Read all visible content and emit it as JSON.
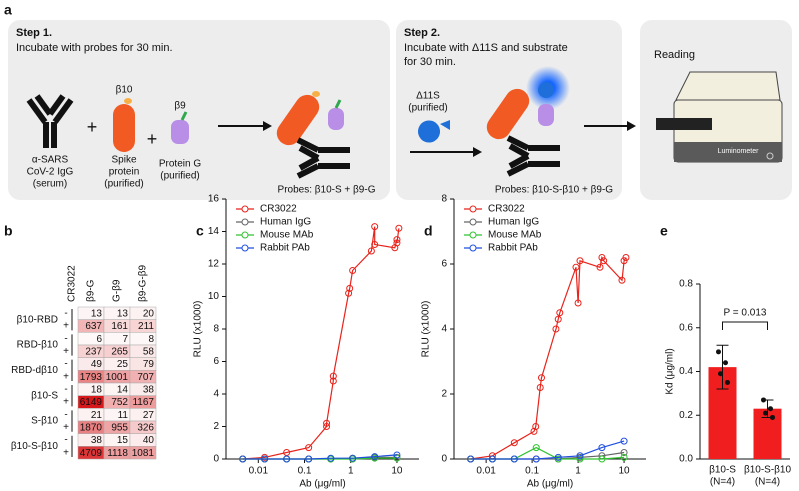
{
  "panel_labels": [
    "a",
    "b",
    "c",
    "d",
    "e"
  ],
  "schematic": {
    "step1": {
      "title": "Step 1.",
      "text": "Incubate with probes for 30 min."
    },
    "step2": {
      "title": "Step 2.",
      "lines": [
        "Incubate with Δ11S and substrate",
        "for 30 min."
      ]
    },
    "reading": "Reading",
    "igg_label": [
      "α-SARS",
      "CoV-2 IgG",
      "(serum)"
    ],
    "plus": "+",
    "spike_tag": "β10",
    "spike_label": [
      "Spike",
      "protein",
      "(purified)"
    ],
    "protg_tag": "β9",
    "protg_label": [
      "Protein G",
      "(purified)"
    ],
    "d11s_label": [
      "Δ11S",
      "(purified)"
    ],
    "luminometer": "Luminometer"
  },
  "heatmap": {
    "column_header": "CR3022",
    "columns": [
      "β9-G",
      "G-β9",
      "β9-G-β9"
    ],
    "signs": [
      "-",
      "+"
    ],
    "rows": [
      {
        "name": "β10-RBD",
        "values": [
          [
            13,
            13,
            20
          ],
          [
            637,
            161,
            211
          ]
        ]
      },
      {
        "name": "RBD-β10",
        "values": [
          [
            6,
            7,
            8
          ],
          [
            237,
            265,
            58
          ]
        ]
      },
      {
        "name": "RBD-dβ10",
        "values": [
          [
            49,
            25,
            79
          ],
          [
            1793,
            1001,
            707
          ]
        ]
      },
      {
        "name": "β10-S",
        "values": [
          [
            18,
            14,
            38
          ],
          [
            6149,
            752,
            1167
          ]
        ]
      },
      {
        "name": "S-β10",
        "values": [
          [
            21,
            11,
            27
          ],
          [
            1870,
            955,
            326
          ]
        ]
      },
      {
        "name": "β10-S-β10",
        "values": [
          [
            38,
            15,
            40
          ],
          [
            4709,
            1118,
            1081
          ]
        ]
      }
    ]
  },
  "chart_data": [
    {
      "type": "line",
      "title": "Probes: β10-S + β9-G",
      "xlabel": "Ab (μg/ml)",
      "ylabel": "RLU (x1000)",
      "log_x": true,
      "xlim": [
        0.002,
        30
      ],
      "ylim": [
        0,
        16
      ],
      "xticks": [
        0.01,
        0.1,
        1,
        10
      ],
      "yticks": [
        0,
        2,
        4,
        6,
        8,
        10,
        12,
        14,
        16
      ],
      "legend": "upper left",
      "series": [
        {
          "name": "CR3022",
          "color": "#e8231b",
          "x": [
            0.0046,
            0.0137,
            0.041,
            0.123,
            0.3,
            0.3,
            0.42,
            0.42,
            0.9,
            0.95,
            1.1,
            2.8,
            3.3,
            3.3,
            9,
            10,
            10,
            11
          ],
          "values": [
            0,
            0.1,
            0.4,
            0.7,
            2.0,
            2.2,
            4.8,
            5.1,
            10.2,
            10.5,
            11.6,
            12.8,
            14.3,
            13.2,
            13.0,
            13.5,
            13.3,
            14.2
          ]
        },
        {
          "name": "Human IgG",
          "color": "#666666",
          "x": [
            0.0046,
            0.0137,
            0.041,
            0.123,
            0.37,
            1.1,
            3.3,
            10
          ],
          "values": [
            0,
            0,
            0,
            0,
            0,
            0.05,
            0.1,
            0.1
          ]
        },
        {
          "name": "Mouse MAb",
          "color": "#2fc22f",
          "x": [
            0.0046,
            0.0137,
            0.041,
            0.123,
            0.37,
            1.1,
            3.3,
            10
          ],
          "values": [
            0,
            0,
            0,
            0,
            0,
            0,
            0.05,
            0.05
          ]
        },
        {
          "name": "Rabbit PAb",
          "color": "#1f4fe0",
          "x": [
            0.0046,
            0.0137,
            0.041,
            0.123,
            0.37,
            1.1,
            3.3,
            10
          ],
          "values": [
            0,
            0,
            0,
            0,
            0.05,
            0.05,
            0.15,
            0.25
          ]
        }
      ]
    },
    {
      "type": "line",
      "title": "Probes: β10-S-β10 + β9-G",
      "xlabel": "Ab (μg/ml)",
      "ylabel": "RLU (x1000)",
      "log_x": true,
      "xlim": [
        0.002,
        30
      ],
      "ylim": [
        0,
        8
      ],
      "xticks": [
        0.01,
        0.1,
        1,
        10
      ],
      "yticks": [
        0,
        2,
        4,
        6,
        8
      ],
      "legend": "upper left",
      "series": [
        {
          "name": "CR3022",
          "color": "#e8231b",
          "x": [
            0.0046,
            0.0137,
            0.041,
            0.11,
            0.12,
            0.15,
            0.16,
            0.33,
            0.37,
            0.4,
            0.9,
            1.0,
            1.1,
            3.0,
            3.3,
            3.6,
            9,
            10,
            11
          ],
          "values": [
            0,
            0.1,
            0.5,
            0.85,
            1.0,
            2.2,
            2.5,
            4.0,
            4.3,
            4.5,
            5.9,
            4.8,
            6.1,
            5.9,
            6.2,
            6.1,
            5.5,
            6.1,
            6.2
          ]
        },
        {
          "name": "Human IgG",
          "color": "#666666",
          "x": [
            0.0046,
            0.0137,
            0.041,
            0.123,
            0.37,
            1.1,
            3.3,
            10
          ],
          "values": [
            0,
            0,
            0,
            0,
            0,
            0.05,
            0.1,
            0.2
          ]
        },
        {
          "name": "Mouse MAb",
          "color": "#2fc22f",
          "x": [
            0.0046,
            0.0137,
            0.041,
            0.123,
            0.37,
            1.1,
            3.3,
            10
          ],
          "values": [
            0,
            0,
            0,
            0.35,
            0,
            0,
            0,
            0.05
          ]
        },
        {
          "name": "Rabbit PAb",
          "color": "#1f4fe0",
          "x": [
            0.0046,
            0.0137,
            0.041,
            0.123,
            0.37,
            1.1,
            3.3,
            10
          ],
          "values": [
            0,
            0,
            0,
            0,
            0.05,
            0.1,
            0.35,
            0.55
          ]
        }
      ]
    },
    {
      "type": "bar",
      "ylabel": "Kd (μg/ml)",
      "categories": [
        "β10-S",
        "β10-S-β10"
      ],
      "sublabels": [
        "(N=4)",
        "(N=4)"
      ],
      "values": [
        0.42,
        0.23
      ],
      "errors": [
        0.1,
        0.04
      ],
      "points": [
        [
          0.49,
          0.44,
          0.39,
          0.35
        ],
        [
          0.27,
          0.23,
          0.21,
          0.19
        ]
      ],
      "color": "#f01e1e",
      "annotation": "P = 0.013",
      "ylim": [
        0,
        0.8
      ],
      "yticks": [
        {
          "value": 0,
          "label": "0.0"
        },
        0.2,
        0.4,
        0.6,
        0.8
      ]
    }
  ]
}
